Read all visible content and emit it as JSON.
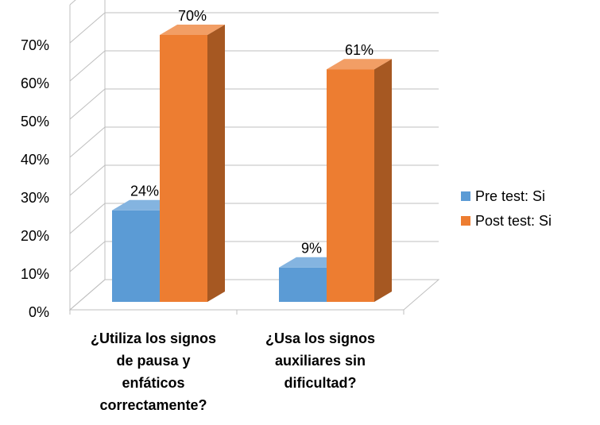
{
  "chart_data": {
    "type": "bar3d",
    "categories": [
      "¿Utiliza los signos de pausa y enfáticos correctamente?",
      "¿Usa los signos auxiliares sin dificultad?"
    ],
    "series": [
      {
        "name": "Pre test: Si",
        "color": "#5b9bd5",
        "values": [
          24,
          9
        ],
        "value_labels": [
          "24%",
          "9%"
        ]
      },
      {
        "name": "Post test: Si",
        "color": "#ed7d31",
        "values": [
          70,
          61
        ],
        "value_labels": [
          "70%",
          "61%"
        ]
      }
    ],
    "ylim": [
      0,
      80
    ],
    "yticks": [
      {
        "value": 0,
        "label": "0%"
      },
      {
        "value": 10,
        "label": "10%"
      },
      {
        "value": 20,
        "label": "20%"
      },
      {
        "value": 30,
        "label": "30%"
      },
      {
        "value": 40,
        "label": "40%"
      },
      {
        "value": 50,
        "label": "50%"
      },
      {
        "value": 60,
        "label": "60%"
      },
      {
        "value": 70,
        "label": "70%"
      }
    ],
    "grid": true,
    "legend": "right"
  }
}
